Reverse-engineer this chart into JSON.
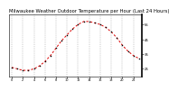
{
  "hours": [
    0,
    1,
    2,
    3,
    4,
    5,
    6,
    7,
    8,
    9,
    10,
    11,
    12,
    13,
    14,
    15,
    16,
    17,
    18,
    19,
    20,
    21,
    22,
    23
  ],
  "temps": [
    26,
    25,
    24,
    24,
    25,
    27,
    30,
    34,
    39,
    44,
    48,
    52,
    55,
    57,
    57,
    56,
    55,
    53,
    50,
    46,
    41,
    37,
    34,
    32
  ],
  "line_color": "#dd0000",
  "marker_color": "#000000",
  "bg_color": "#ffffff",
  "grid_color": "#999999",
  "title": "Milwaukee Weather Outdoor Temperature per Hour (Last 24 Hours)",
  "title_fontsize": 3.8,
  "ylim": [
    20,
    62
  ],
  "yticks": [
    25,
    35,
    45,
    55
  ],
  "ytick_labels": [
    "25",
    "35",
    "45",
    "55"
  ],
  "xtick_positions": [
    0,
    2,
    4,
    6,
    8,
    10,
    12,
    14,
    16,
    18,
    20,
    22
  ],
  "xtick_labels": [
    "0",
    "2",
    "4",
    "6",
    "8",
    "10",
    "12",
    "14",
    "16",
    "18",
    "20",
    "22"
  ],
  "vgrid_positions": [
    0,
    2,
    4,
    6,
    8,
    10,
    12,
    14,
    16,
    18,
    20,
    22
  ]
}
